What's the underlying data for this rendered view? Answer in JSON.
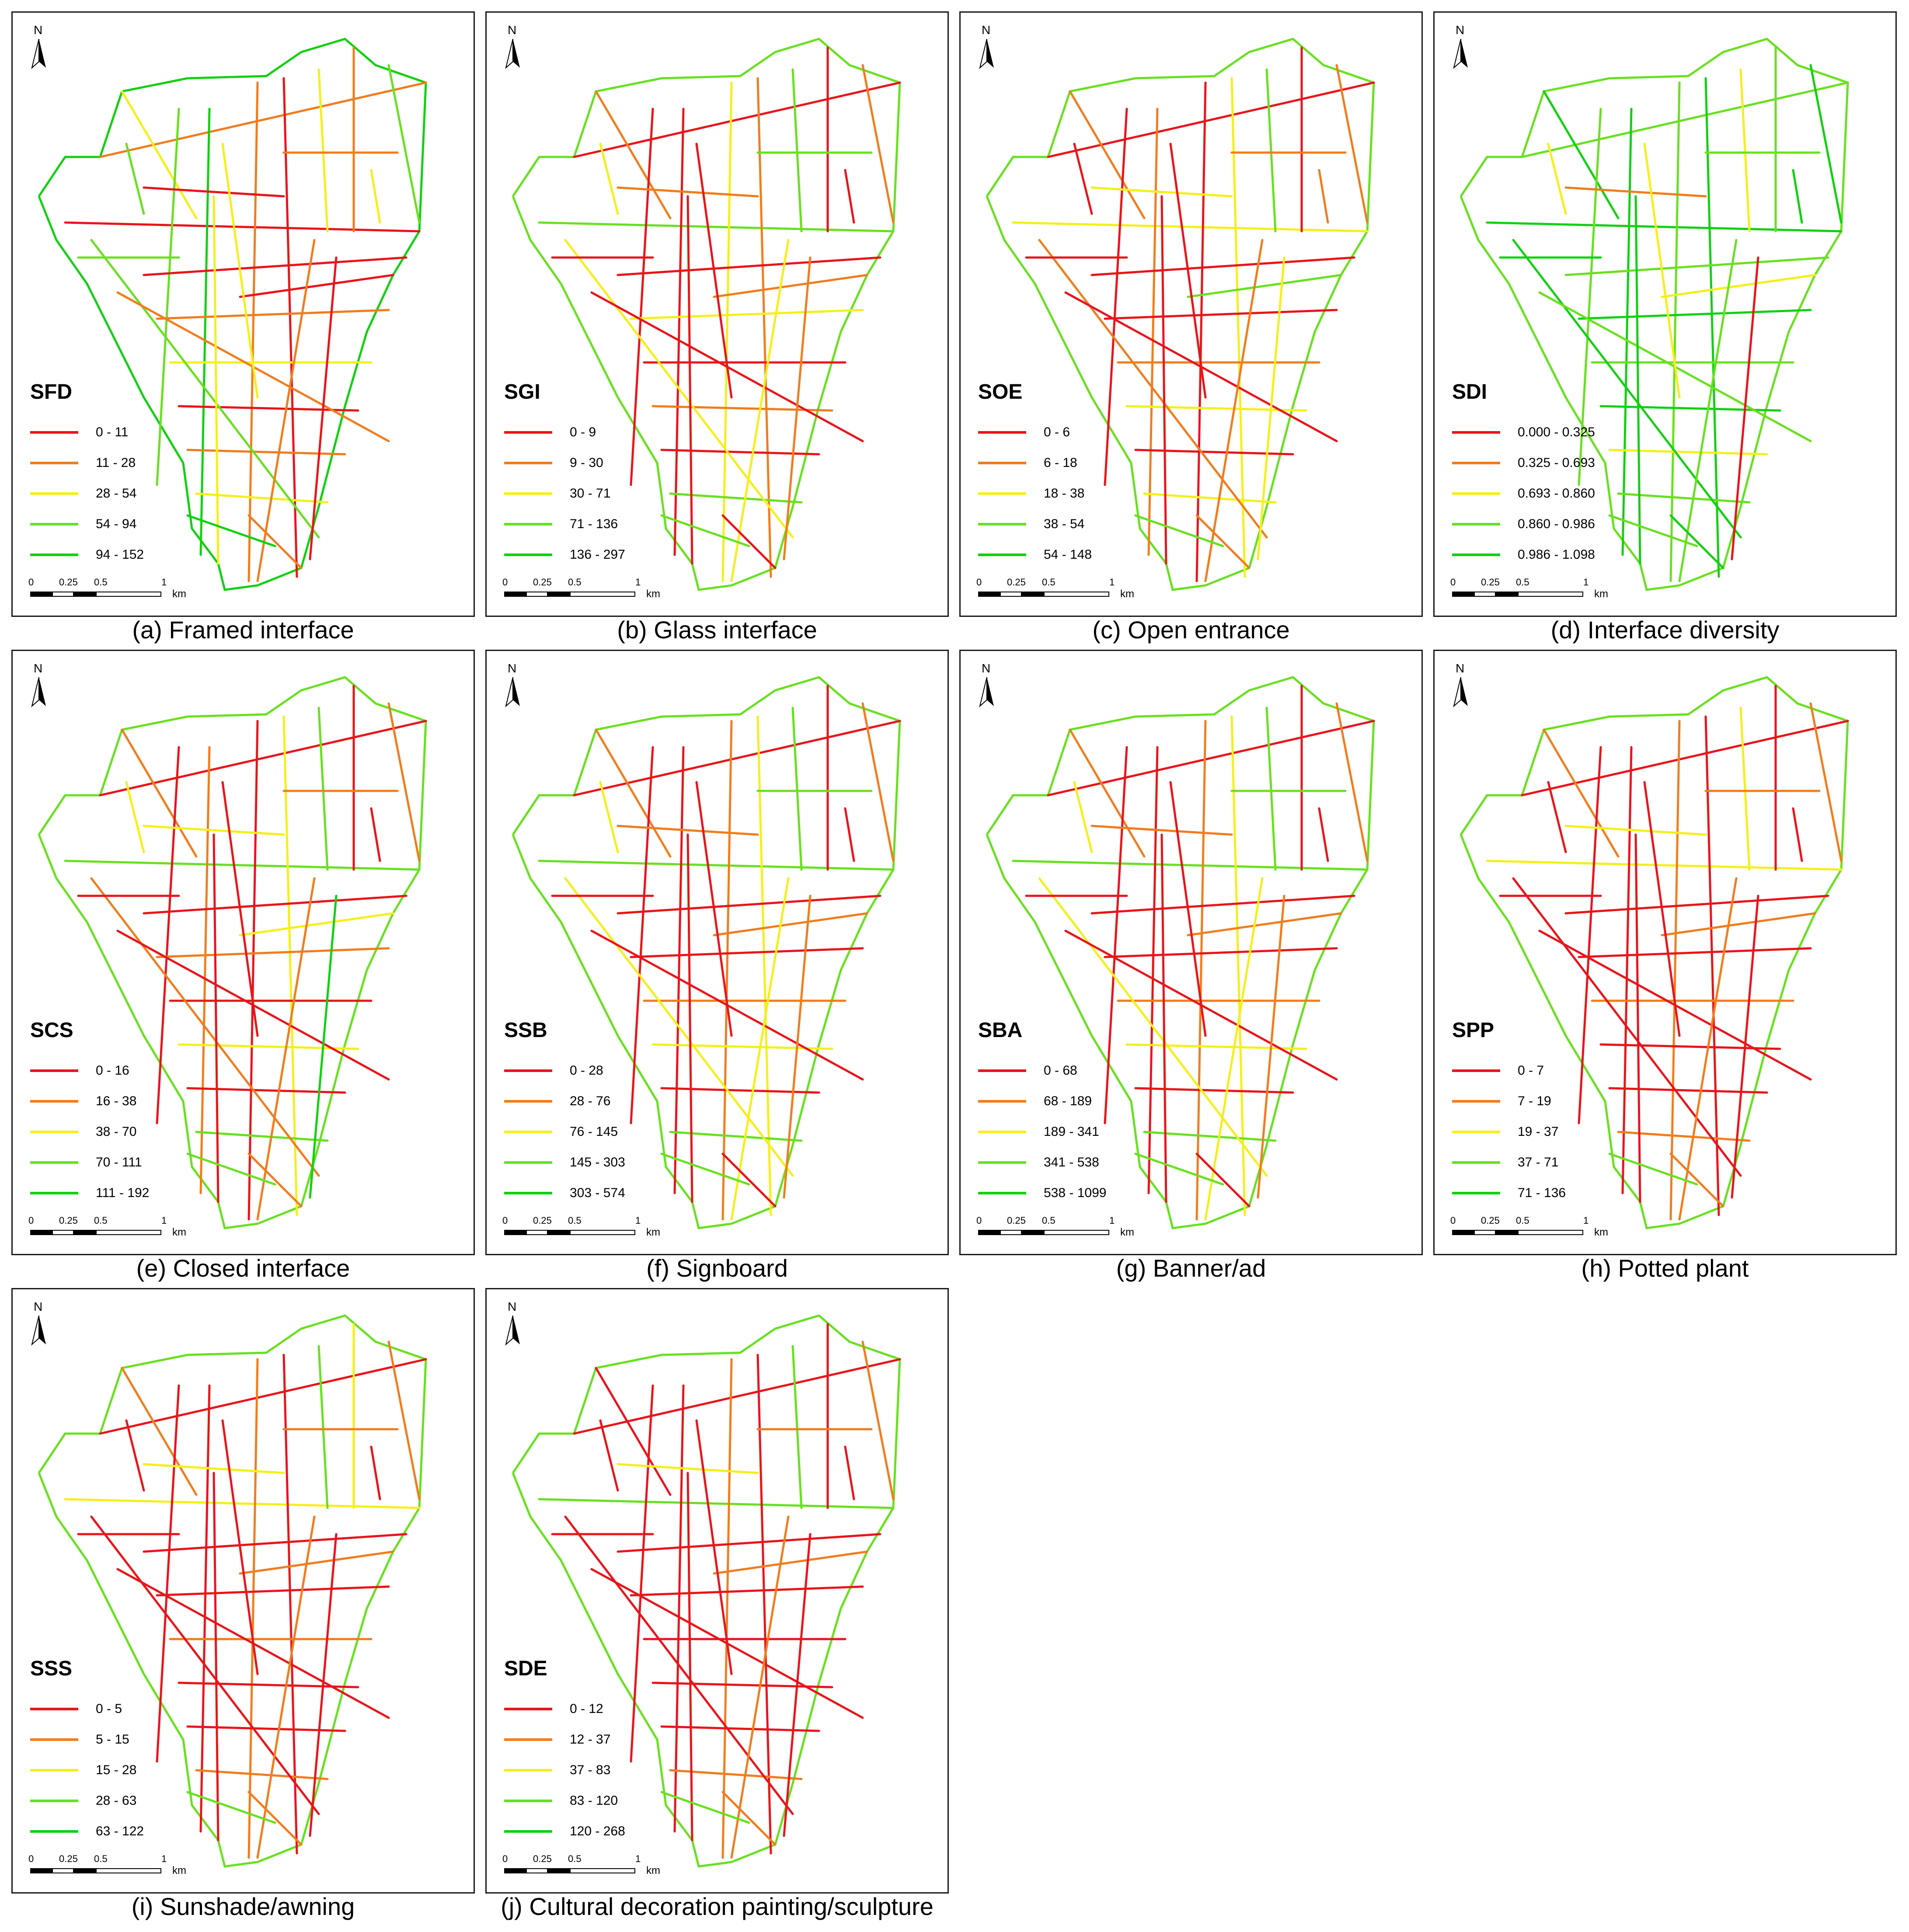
{
  "north_label": "N",
  "scale": {
    "ticks": [
      "0",
      "0.25",
      "0.5",
      "1"
    ],
    "unit": "km"
  },
  "colors": [
    "#e8151b",
    "#f07d1e",
    "#f5ef1a",
    "#69e020",
    "#12d012"
  ],
  "panels": [
    {
      "title": "SFD",
      "caption": "(a) Framed interface",
      "classes": [
        "0 - 11",
        "11 - 28",
        "28 - 54",
        "54 - 94",
        "94 - 152"
      ]
    },
    {
      "title": "SGI",
      "caption": "(b) Glass interface",
      "classes": [
        "0 - 9",
        "9 - 30",
        "30 - 71",
        "71 - 136",
        "136 - 297"
      ]
    },
    {
      "title": "SOE",
      "caption": "(c) Open entrance",
      "classes": [
        "0 - 6",
        "6 - 18",
        "18 - 38",
        "38 - 54",
        "54 - 148"
      ]
    },
    {
      "title": "SDI",
      "caption": "(d) Interface diversity",
      "classes": [
        "0.000 - 0.325",
        "0.325 - 0.693",
        "0.693 - 0.860",
        "0.860 - 0.986",
        "0.986 - 1.098"
      ]
    },
    {
      "title": "SCS",
      "caption": "(e) Closed interface",
      "classes": [
        "0 - 16",
        "16 - 38",
        "38 - 70",
        "70 - 111",
        "111 - 192"
      ]
    },
    {
      "title": "SSB",
      "caption": "(f) Signboard",
      "classes": [
        "0 - 28",
        "28 - 76",
        "76 - 145",
        "145 - 303",
        "303 - 574"
      ]
    },
    {
      "title": "SBA",
      "caption": "(g) Banner/ad",
      "classes": [
        "0 - 68",
        "68 - 189",
        "189 - 341",
        "341 - 538",
        "538 - 1099"
      ]
    },
    {
      "title": "SPP",
      "caption": "(h) Potted plant",
      "classes": [
        "0 - 7",
        "7 - 19",
        "19 - 37",
        "37 - 71",
        "71 - 136"
      ]
    },
    {
      "title": "SSS",
      "caption": "(i) Sunshade/awning",
      "classes": [
        "0 - 5",
        "5 - 15",
        "15 - 28",
        "28 - 63",
        "63 - 122"
      ]
    },
    {
      "title": "SDE",
      "caption": "(j) Cultural decoration painting/sculpture",
      "classes": [
        "0 - 12",
        "12 - 37",
        "37 - 83",
        "83 - 120",
        "120 - 268"
      ]
    }
  ]
}
